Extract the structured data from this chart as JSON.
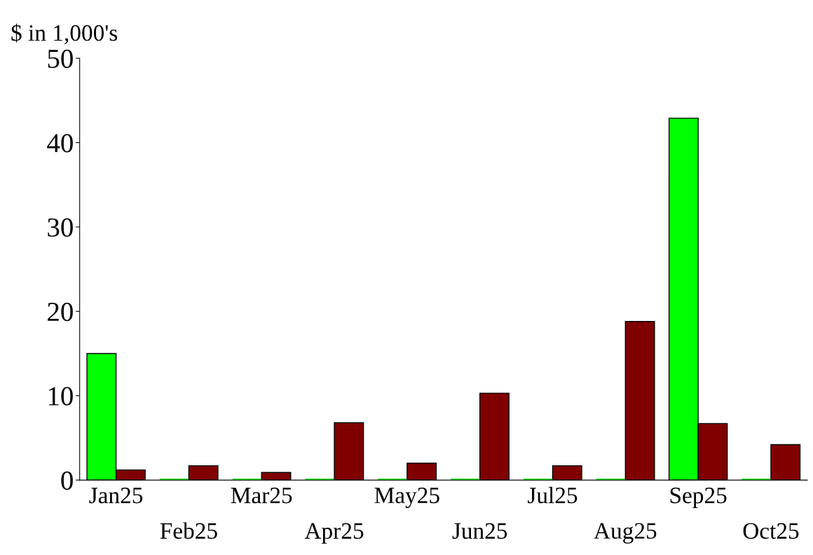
{
  "chart_data": {
    "type": "bar",
    "ylabel": "$ in 1,000's",
    "categories": [
      "Jan25",
      "Feb25",
      "Mar25",
      "Apr25",
      "May25",
      "Jun25",
      "Jul25",
      "Aug25",
      "Sep25",
      "Oct25"
    ],
    "series": [
      {
        "color": "#00ff00",
        "values": [
          15.0,
          0,
          0,
          0,
          0,
          0,
          0,
          0,
          42.9,
          0
        ]
      },
      {
        "color": "#800000",
        "values": [
          1.2,
          1.7,
          0.9,
          6.8,
          2.0,
          10.3,
          1.7,
          18.8,
          6.7,
          4.2
        ]
      }
    ],
    "ylim": [
      0,
      50
    ],
    "yticks": [
      0,
      10,
      20,
      30,
      40,
      50
    ],
    "grid": false,
    "legend": false
  }
}
